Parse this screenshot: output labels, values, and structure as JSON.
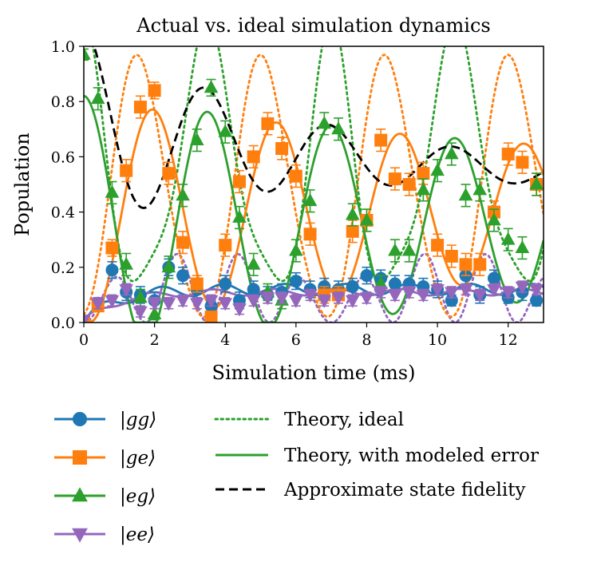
{
  "chart_data": {
    "type": "line",
    "title": "Actual vs. ideal simulation dynamics",
    "xlabel": "Simulation time (ms)",
    "ylabel": "Population",
    "xlim": [
      0,
      13
    ],
    "ylim": [
      0,
      1.0
    ],
    "xticks": [
      0,
      2,
      4,
      6,
      8,
      10,
      12
    ],
    "xtick_labels": [
      "0",
      "2",
      "4",
      "6",
      "8",
      "10",
      "12"
    ],
    "yticks": [
      0.0,
      0.2,
      0.4,
      0.6,
      0.8,
      1.0
    ],
    "ytick_labels": [
      "0.0",
      "0.2",
      "0.4",
      "0.6",
      "0.8",
      "1.0"
    ],
    "grid": false,
    "legend_placement": "below",
    "series": [
      {
        "name": "gg",
        "legend": "|gg⟩",
        "color": "#1f77b4",
        "marker": "circle",
        "x": [
          0,
          0.4,
          0.8,
          1.2,
          1.6,
          2.0,
          2.4,
          2.8,
          3.2,
          3.6,
          4.0,
          4.4,
          4.8,
          5.2,
          5.6,
          6.0,
          6.4,
          6.8,
          7.2,
          7.6,
          8.0,
          8.4,
          8.8,
          9.2,
          9.6,
          10.0,
          10.4,
          10.8,
          11.2,
          11.6,
          12.0,
          12.4,
          12.8
        ],
        "y": [
          0.0,
          0.07,
          0.19,
          0.11,
          0.1,
          0.08,
          0.2,
          0.17,
          0.12,
          0.06,
          0.14,
          0.08,
          0.12,
          0.1,
          0.11,
          0.15,
          0.12,
          0.13,
          0.12,
          0.13,
          0.17,
          0.16,
          0.14,
          0.14,
          0.13,
          0.12,
          0.08,
          0.17,
          0.1,
          0.16,
          0.09,
          0.11,
          0.08
        ],
        "err": [
          0.01,
          0.02,
          0.03,
          0.03,
          0.03,
          0.03,
          0.03,
          0.03,
          0.03,
          0.02,
          0.03,
          0.03,
          0.03,
          0.03,
          0.03,
          0.03,
          0.03,
          0.03,
          0.03,
          0.03,
          0.03,
          0.03,
          0.03,
          0.03,
          0.03,
          0.03,
          0.02,
          0.03,
          0.03,
          0.03,
          0.02,
          0.03,
          0.02
        ]
      },
      {
        "name": "ge",
        "legend": "|ge⟩",
        "color": "#ff7f0e",
        "marker": "square",
        "x": [
          0,
          0.4,
          0.8,
          1.2,
          1.6,
          2.0,
          2.4,
          2.8,
          3.2,
          3.6,
          4.0,
          4.4,
          4.8,
          5.2,
          5.6,
          6.0,
          6.4,
          6.8,
          7.2,
          7.6,
          8.0,
          8.4,
          8.8,
          9.2,
          9.6,
          10.0,
          10.4,
          10.8,
          11.2,
          11.6,
          12.0,
          12.4,
          12.8
        ],
        "y": [
          0.0,
          0.06,
          0.27,
          0.55,
          0.78,
          0.84,
          0.54,
          0.29,
          0.14,
          0.02,
          0.28,
          0.51,
          0.6,
          0.72,
          0.63,
          0.53,
          0.32,
          0.1,
          0.1,
          0.33,
          0.37,
          0.66,
          0.52,
          0.5,
          0.54,
          0.28,
          0.24,
          0.21,
          0.21,
          0.4,
          0.61,
          0.58,
          0.5
        ],
        "err": [
          0.01,
          0.02,
          0.03,
          0.04,
          0.04,
          0.03,
          0.04,
          0.04,
          0.03,
          0.02,
          0.04,
          0.04,
          0.04,
          0.04,
          0.04,
          0.04,
          0.04,
          0.03,
          0.03,
          0.04,
          0.04,
          0.04,
          0.04,
          0.04,
          0.04,
          0.04,
          0.04,
          0.04,
          0.04,
          0.04,
          0.04,
          0.04,
          0.04
        ]
      },
      {
        "name": "eg",
        "legend": "|eg⟩",
        "color": "#2ca02c",
        "marker": "triangle-up",
        "x": [
          0,
          0.4,
          0.8,
          1.2,
          1.6,
          2.0,
          2.4,
          2.8,
          3.2,
          3.6,
          4.0,
          4.4,
          4.8,
          5.2,
          5.6,
          6.0,
          6.4,
          6.8,
          7.2,
          7.6,
          8.0,
          8.4,
          8.8,
          9.2,
          9.6,
          10.0,
          10.4,
          10.8,
          11.2,
          11.6,
          12.0,
          12.4,
          12.8
        ],
        "y": [
          0.97,
          0.81,
          0.47,
          0.21,
          0.09,
          0.03,
          0.2,
          0.46,
          0.66,
          0.85,
          0.69,
          0.38,
          0.21,
          0.11,
          0.08,
          0.26,
          0.44,
          0.72,
          0.7,
          0.39,
          0.37,
          0.14,
          0.26,
          0.26,
          0.48,
          0.55,
          0.61,
          0.46,
          0.48,
          0.37,
          0.3,
          0.27,
          0.5
        ],
        "err": [
          0.02,
          0.04,
          0.04,
          0.04,
          0.03,
          0.02,
          0.04,
          0.04,
          0.04,
          0.03,
          0.04,
          0.04,
          0.04,
          0.03,
          0.03,
          0.04,
          0.04,
          0.04,
          0.04,
          0.04,
          0.04,
          0.03,
          0.04,
          0.04,
          0.04,
          0.04,
          0.04,
          0.04,
          0.04,
          0.04,
          0.04,
          0.04,
          0.04
        ]
      },
      {
        "name": "ee",
        "legend": "|ee⟩",
        "color": "#9467bd",
        "marker": "triangle-down",
        "x": [
          0,
          0.4,
          0.8,
          1.2,
          1.6,
          2.0,
          2.4,
          2.8,
          3.2,
          3.6,
          4.0,
          4.4,
          4.8,
          5.2,
          5.6,
          6.0,
          6.4,
          6.8,
          7.2,
          7.6,
          8.0,
          8.4,
          8.8,
          9.2,
          9.6,
          10.0,
          10.4,
          10.8,
          11.2,
          11.6,
          12.0,
          12.4,
          12.8
        ],
        "y": [
          0.01,
          0.07,
          0.08,
          0.12,
          0.04,
          0.07,
          0.07,
          0.08,
          0.07,
          0.08,
          0.07,
          0.05,
          0.08,
          0.09,
          0.09,
          0.08,
          0.1,
          0.08,
          0.09,
          0.08,
          0.09,
          0.11,
          0.1,
          0.11,
          0.1,
          0.12,
          0.11,
          0.12,
          0.1,
          0.12,
          0.11,
          0.13,
          0.12
        ],
        "err": [
          0.01,
          0.02,
          0.02,
          0.02,
          0.02,
          0.02,
          0.02,
          0.02,
          0.02,
          0.02,
          0.02,
          0.02,
          0.02,
          0.02,
          0.02,
          0.02,
          0.02,
          0.02,
          0.02,
          0.02,
          0.02,
          0.02,
          0.02,
          0.02,
          0.02,
          0.02,
          0.02,
          0.02,
          0.02,
          0.02,
          0.02,
          0.02,
          0.02
        ]
      }
    ],
    "theory_lines": [
      {
        "name": "Theory, ideal",
        "style": "dotted",
        "example_color": "#2ca02c"
      },
      {
        "name": "Theory, with modeled error",
        "style": "solid",
        "example_color": "#2ca02c"
      },
      {
        "name": "Approximate state fidelity",
        "style": "dashed",
        "example_color": "#000000"
      }
    ]
  }
}
